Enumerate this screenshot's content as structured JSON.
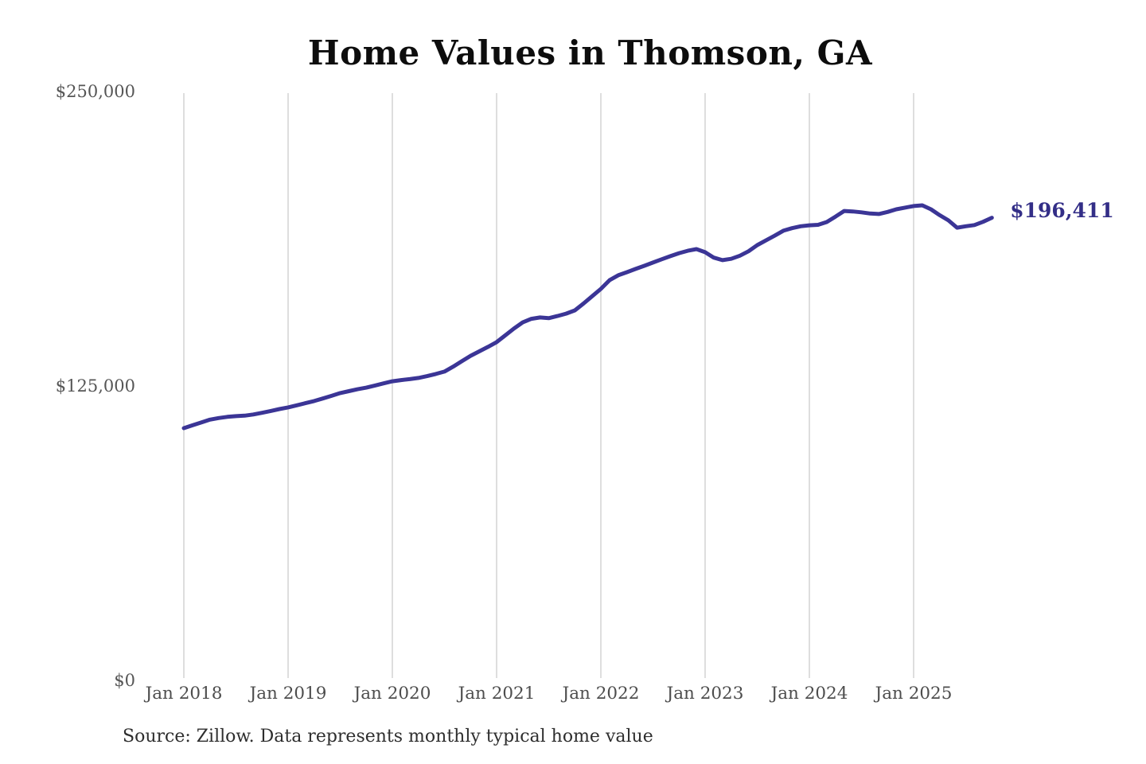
{
  "chart_data": {
    "type": "line",
    "title": "Home Values in Thomson, GA",
    "source_note": "Source: Zillow. Data represents monthly typical home value",
    "end_label": "$196,411",
    "latest_value": 196411,
    "x_tick_labels": [
      "Jan 2018",
      "Jan 2019",
      "Jan 2020",
      "Jan 2021",
      "Jan 2022",
      "Jan 2023",
      "Jan 2024",
      "Jan 2025"
    ],
    "y_tick_labels": [
      "$250,000",
      "$125,000",
      "$0"
    ],
    "y_tick_values": [
      250000,
      125000,
      0
    ],
    "ylim": [
      0,
      250000
    ],
    "frequency": "monthly",
    "x_start": "2018-01",
    "x_end": "2025-10",
    "grid": "vertical-yearly",
    "legend": "none",
    "line_color": "#3b3596",
    "end_label_color": "#332e87",
    "gridline_color": "#c9c9c9",
    "series": [
      {
        "name": "Typical home value ($)",
        "values": [
          107100,
          108300,
          109500,
          110700,
          111400,
          111900,
          112200,
          112400,
          112900,
          113600,
          114400,
          115200,
          115900,
          116800,
          117700,
          118600,
          119700,
          120800,
          122000,
          122800,
          123600,
          124300,
          125200,
          126100,
          127000,
          127500,
          127900,
          128400,
          129200,
          130100,
          131100,
          133200,
          135500,
          137800,
          139700,
          141600,
          143600,
          146500,
          149400,
          152000,
          153500,
          154100,
          153800,
          154700,
          155700,
          157100,
          160000,
          163100,
          166200,
          169900,
          172000,
          173300,
          174700,
          176000,
          177400,
          178800,
          180100,
          181400,
          182400,
          183100,
          181800,
          179500,
          178400,
          179000,
          180300,
          182200,
          184800,
          186800,
          188800,
          190900,
          192000,
          192800,
          193200,
          193400,
          194600,
          196900,
          199300,
          199100,
          198700,
          198200,
          198000,
          198900,
          200000,
          200700,
          201400,
          201700,
          200000,
          197500,
          195300,
          192200,
          192800,
          193300,
          194700,
          196411
        ]
      }
    ]
  }
}
